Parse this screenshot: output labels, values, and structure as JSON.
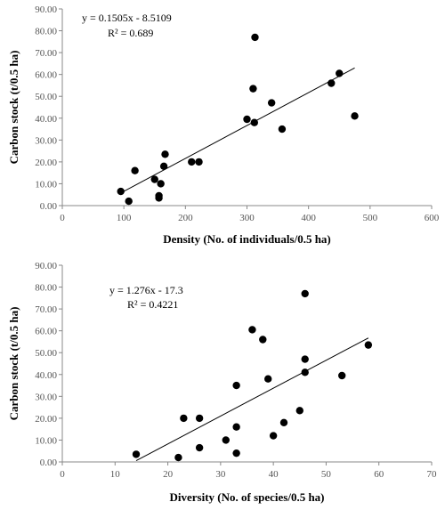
{
  "chart_data": [
    {
      "type": "scatter",
      "xlabel": "Density (No. of individuals/0.5 ha)",
      "ylabel": "Carbon stock (t/0.5 ha)",
      "xlim": [
        0,
        600
      ],
      "ylim": [
        0,
        90
      ],
      "xticks": [
        "0",
        "100",
        "200",
        "300",
        "400",
        "500",
        "600"
      ],
      "yticks": [
        "0.00",
        "10.00",
        "20.00",
        "30.00",
        "40.00",
        "50.00",
        "60.00",
        "70.00",
        "80.00",
        "90.00"
      ],
      "equation": "y = 0.1505x - 8.5109",
      "r2": "R² = 0.689",
      "trendline": {
        "slope": 0.1505,
        "intercept": -8.5109,
        "x_range": [
          95,
          475
        ]
      },
      "points": [
        {
          "x": 95,
          "y": 6.5
        },
        {
          "x": 108,
          "y": 2.0
        },
        {
          "x": 118,
          "y": 16.0
        },
        {
          "x": 150,
          "y": 12.0
        },
        {
          "x": 157,
          "y": 4.5
        },
        {
          "x": 157,
          "y": 3.5
        },
        {
          "x": 160,
          "y": 10.0
        },
        {
          "x": 165,
          "y": 18.0
        },
        {
          "x": 167,
          "y": 23.5
        },
        {
          "x": 210,
          "y": 20.0
        },
        {
          "x": 222,
          "y": 20.0
        },
        {
          "x": 300,
          "y": 39.5
        },
        {
          "x": 310,
          "y": 53.5
        },
        {
          "x": 312,
          "y": 38.0
        },
        {
          "x": 313,
          "y": 77.0
        },
        {
          "x": 340,
          "y": 47.0
        },
        {
          "x": 357,
          "y": 35.0
        },
        {
          "x": 437,
          "y": 56.0
        },
        {
          "x": 450,
          "y": 60.5
        },
        {
          "x": 475,
          "y": 41.0
        }
      ]
    },
    {
      "type": "scatter",
      "xlabel": "Diversity (No. of species/0.5 ha)",
      "ylabel": "Carbon stock (t/0.5 ha)",
      "xlim": [
        0,
        70
      ],
      "ylim": [
        0,
        90
      ],
      "xticks": [
        "0",
        "10",
        "20",
        "30",
        "40",
        "50",
        "60",
        "70"
      ],
      "yticks": [
        "0.00",
        "10.00",
        "20.00",
        "30.00",
        "40.00",
        "50.00",
        "60.00",
        "70.00",
        "80.00",
        "90.00"
      ],
      "equation": "y = 1.276x - 17.3",
      "r2": "R² = 0.4221",
      "trendline": {
        "slope": 1.276,
        "intercept": -17.3,
        "x_range": [
          14,
          58
        ]
      },
      "points": [
        {
          "x": 14,
          "y": 3.5
        },
        {
          "x": 22,
          "y": 2.0
        },
        {
          "x": 23,
          "y": 20.0
        },
        {
          "x": 26,
          "y": 20.0
        },
        {
          "x": 26,
          "y": 6.5
        },
        {
          "x": 31,
          "y": 10.0
        },
        {
          "x": 33,
          "y": 35.0
        },
        {
          "x": 33,
          "y": 16.0
        },
        {
          "x": 33,
          "y": 4.0
        },
        {
          "x": 36,
          "y": 60.5
        },
        {
          "x": 38,
          "y": 56.0
        },
        {
          "x": 39,
          "y": 38.0
        },
        {
          "x": 40,
          "y": 12.0
        },
        {
          "x": 42,
          "y": 18.0
        },
        {
          "x": 45,
          "y": 23.5
        },
        {
          "x": 46,
          "y": 77.0
        },
        {
          "x": 46,
          "y": 47.0
        },
        {
          "x": 46,
          "y": 41.0
        },
        {
          "x": 53,
          "y": 39.5
        },
        {
          "x": 58,
          "y": 53.5
        }
      ]
    }
  ]
}
